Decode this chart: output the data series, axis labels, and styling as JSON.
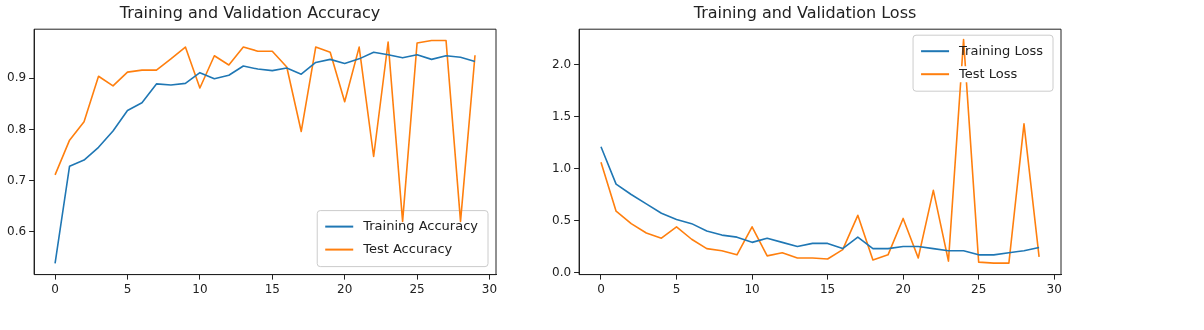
{
  "chart_data": [
    {
      "type": "line",
      "title": "Training and Validation Accuracy",
      "x": [
        0,
        1,
        2,
        3,
        4,
        5,
        6,
        7,
        8,
        9,
        10,
        11,
        12,
        13,
        14,
        15,
        16,
        17,
        18,
        19,
        20,
        21,
        22,
        23,
        24,
        25,
        26,
        27,
        28,
        29
      ],
      "xlim": [
        -1.45,
        30.45
      ],
      "xticks": [
        0,
        5,
        10,
        15,
        20,
        25,
        30
      ],
      "ylim": [
        0.516,
        0.996
      ],
      "yticks": [
        0.6,
        0.7,
        0.8,
        0.9
      ],
      "grid": false,
      "legend": "bottom right",
      "marker": "none",
      "line_style": "solid",
      "series": [
        {
          "name": "Training Accuracy",
          "color": "#1f77b4",
          "values": [
            0.538,
            0.728,
            0.74,
            0.765,
            0.797,
            0.837,
            0.852,
            0.889,
            0.887,
            0.89,
            0.911,
            0.899,
            0.906,
            0.924,
            0.918,
            0.915,
            0.92,
            0.908,
            0.931,
            0.937,
            0.929,
            0.938,
            0.951,
            0.946,
            0.94,
            0.946,
            0.937,
            0.944,
            0.941,
            0.933
          ]
        },
        {
          "name": "Test Accuracy",
          "color": "#ff7f0e",
          "values": [
            0.711,
            0.779,
            0.815,
            0.904,
            0.885,
            0.912,
            0.916,
            0.916,
            0.938,
            0.961,
            0.881,
            0.944,
            0.926,
            0.961,
            0.953,
            0.953,
            0.922,
            0.796,
            0.961,
            0.951,
            0.854,
            0.961,
            0.747,
            0.971,
            0.62,
            0.969,
            0.974,
            0.974,
            0.62,
            0.945
          ]
        }
      ]
    },
    {
      "type": "line",
      "title": "Training and Validation Loss",
      "x": [
        0,
        1,
        2,
        3,
        4,
        5,
        6,
        7,
        8,
        9,
        10,
        11,
        12,
        13,
        14,
        15,
        16,
        17,
        18,
        19,
        20,
        21,
        22,
        23,
        24,
        25,
        26,
        27,
        28,
        29
      ],
      "xlim": [
        -1.45,
        30.45
      ],
      "xticks": [
        0,
        5,
        10,
        15,
        20,
        25,
        30
      ],
      "ylim": [
        -0.02,
        2.34
      ],
      "yticks": [
        {
          "value": 0,
          "label": "0.0"
        },
        0.5,
        {
          "value": 1,
          "label": "1.0"
        },
        1.5,
        {
          "value": 2,
          "label": "2.0"
        }
      ],
      "grid": false,
      "legend": "top right",
      "marker": "none",
      "line_style": "solid",
      "series": [
        {
          "name": "Training Loss",
          "color": "#1f77b4",
          "values": [
            1.21,
            0.85,
            0.75,
            0.66,
            0.57,
            0.51,
            0.47,
            0.4,
            0.36,
            0.34,
            0.29,
            0.33,
            0.29,
            0.25,
            0.28,
            0.28,
            0.23,
            0.34,
            0.23,
            0.23,
            0.25,
            0.25,
            0.23,
            0.21,
            0.21,
            0.17,
            0.17,
            0.19,
            0.21,
            0.24
          ]
        },
        {
          "name": "Test Loss",
          "color": "#ff7f0e",
          "values": [
            1.06,
            0.59,
            0.47,
            0.38,
            0.33,
            0.44,
            0.32,
            0.23,
            0.21,
            0.17,
            0.44,
            0.16,
            0.19,
            0.14,
            0.14,
            0.13,
            0.22,
            0.55,
            0.12,
            0.17,
            0.52,
            0.14,
            0.79,
            0.11,
            2.24,
            0.1,
            0.09,
            0.09,
            1.43,
            0.15
          ]
        }
      ]
    }
  ]
}
